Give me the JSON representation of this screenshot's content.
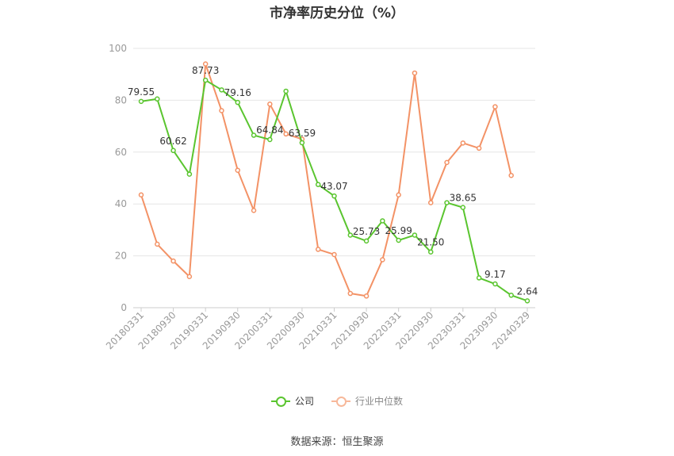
{
  "chart_data": {
    "type": "line",
    "title": "市净率历史分位（%）",
    "ylim": [
      0,
      100
    ],
    "yticks": [
      0,
      20,
      40,
      60,
      80,
      100
    ],
    "x": [
      "20180331",
      "20180630",
      "20180930",
      "20181231",
      "20190331",
      "20190630",
      "20190930",
      "20191231",
      "20200331",
      "20200630",
      "20200930",
      "20201231",
      "20210331",
      "20210630",
      "20210930",
      "20211231",
      "20220331",
      "20220630",
      "20220930",
      "20221231",
      "20230331",
      "20230630",
      "20230930",
      "20231231",
      "20240329"
    ],
    "xtick_labels": [
      "20180331",
      "20180930",
      "20190331",
      "20190930",
      "20200331",
      "20200930",
      "20210331",
      "20210930",
      "20220331",
      "20220930",
      "20230331",
      "20230930",
      "20240329"
    ],
    "series": [
      {
        "name": "公司",
        "color": "#5ac52f",
        "values": [
          79.55,
          80.5,
          60.62,
          51.5,
          87.73,
          84.0,
          79.16,
          66.5,
          64.84,
          83.5,
          63.59,
          47.5,
          43.07,
          28.0,
          25.73,
          33.5,
          25.99,
          28.0,
          21.5,
          40.5,
          38.65,
          11.5,
          9.17,
          4.8,
          2.64
        ],
        "labels": {
          "0": "79.55",
          "2": "60.62",
          "4": "87.73",
          "6": "79.16",
          "8": "64.84",
          "10": "63.59",
          "12": "43.07",
          "14": "25.73",
          "16": "25.99",
          "18": "21.50",
          "20": "38.65",
          "22": "9.17",
          "24": "2.64"
        }
      },
      {
        "name": "行业中位数",
        "color": "#f39266",
        "values": [
          43.5,
          24.5,
          18.0,
          12.0,
          94.0,
          76.0,
          53.0,
          37.5,
          78.5,
          67.0,
          65.0,
          22.5,
          20.5,
          5.5,
          4.5,
          18.5,
          43.5,
          90.5,
          40.5,
          56.0,
          63.5,
          61.5,
          77.5,
          51.0,
          null
        ]
      }
    ]
  },
  "source": "数据来源：恒生聚源"
}
